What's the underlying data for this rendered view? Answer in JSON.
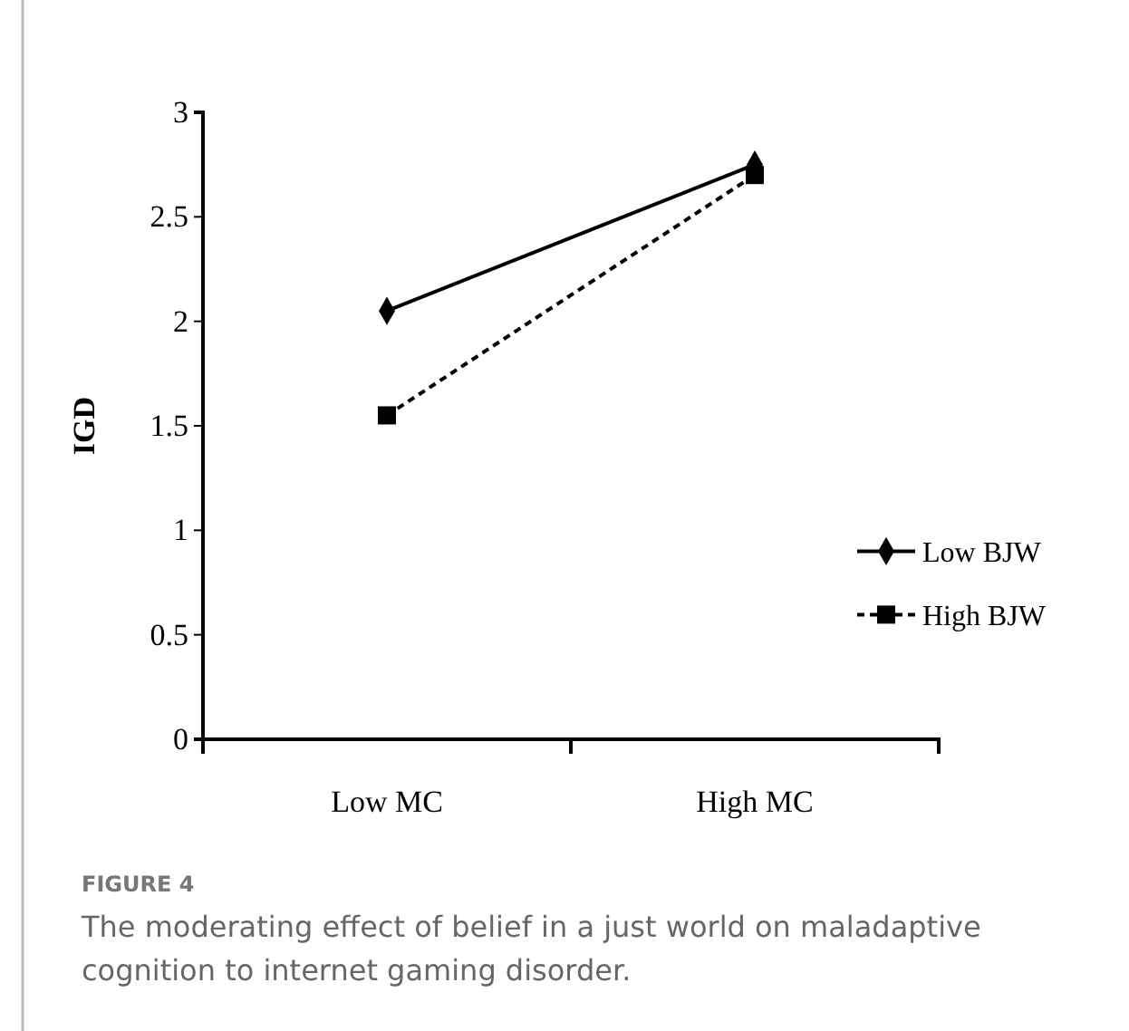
{
  "chart_data": {
    "type": "line",
    "title": "FIGURE 4",
    "subtitle": "The moderating effect of belief in a just world on maladaptive cognition to internet gaming disorder.",
    "ylabel": "IGD",
    "categories": [
      "Low MC",
      "High MC"
    ],
    "series": [
      {
        "name": "Low BJW",
        "color": "#000000",
        "values": [
          2.05,
          2.75
        ],
        "marker": "diamond",
        "line_style": "solid"
      },
      {
        "name": "High BJW",
        "color": "#000000",
        "values": [
          1.55,
          2.7
        ],
        "marker": "square",
        "line_style": "dashed"
      }
    ],
    "ylim": [
      0,
      3
    ],
    "yticks": [
      0,
      0.5,
      1,
      1.5,
      2,
      2.5,
      3
    ],
    "grid": false,
    "legend": "right"
  }
}
